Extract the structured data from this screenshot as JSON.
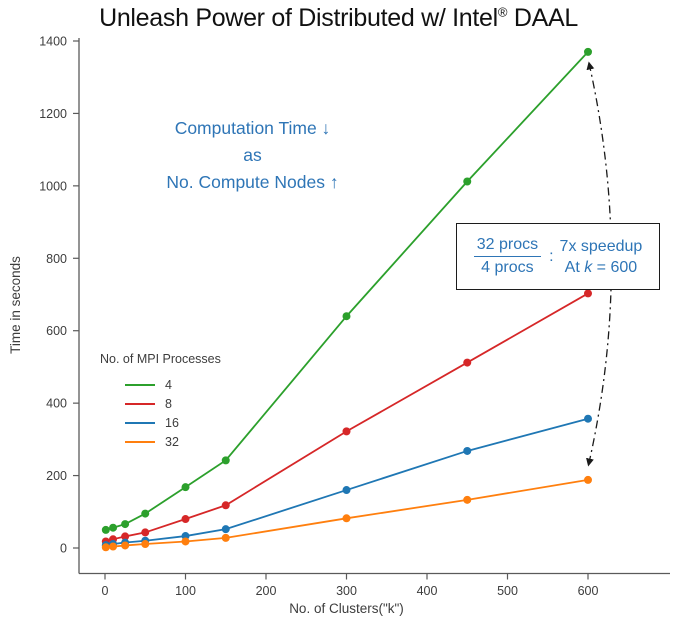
{
  "title": {
    "part1": "Unleash Power of Distributed w/ Intel",
    "reg": "®",
    "part2": " DAAL"
  },
  "note": {
    "line1": "Computation Time ↓",
    "line2": "as",
    "line3": "No. Compute Nodes ↑",
    "color": "#2e75b6"
  },
  "speedup_box": {
    "numerator": "32 procs",
    "denominator": "4 procs",
    "colon": ":",
    "line1": "7x speedup",
    "line2_pre": "At ",
    "line2_k": "k",
    "line2_post": " = 600",
    "text_color": "#2e75b6",
    "border_color": "#1c1c1c"
  },
  "chart_data": {
    "type": "line",
    "title": "Unleash Power of Distributed w/ Intel® DAAL",
    "xlabel": "No. of Clusters(\"k\")",
    "ylabel": "Time in seconds",
    "xlim": [
      0,
      600
    ],
    "ylim": [
      0,
      1400
    ],
    "xticks": [
      0,
      100,
      200,
      300,
      400,
      500,
      600
    ],
    "yticks": [
      0,
      200,
      400,
      600,
      800,
      1000,
      1200,
      1400
    ],
    "grid": false,
    "legend_title": "No. of MPI Processes",
    "legend_position": "center-left",
    "x": [
      1,
      10,
      25,
      50,
      100,
      150,
      300,
      450,
      600
    ],
    "series": [
      {
        "name": "4",
        "color": "#2ca02c",
        "values": [
          50,
          56,
          66,
          95,
          168,
          242,
          640,
          1012,
          1370
        ]
      },
      {
        "name": "8",
        "color": "#d62728",
        "values": [
          18,
          24,
          32,
          43,
          80,
          118,
          322,
          512,
          703
        ]
      },
      {
        "name": "16",
        "color": "#1f77b4",
        "values": [
          8,
          11,
          15,
          20,
          33,
          52,
          160,
          268,
          357
        ]
      },
      {
        "name": "32",
        "color": "#ff7f0e",
        "values": [
          2,
          4,
          7,
          11,
          18,
          28,
          82,
          133,
          188
        ]
      }
    ],
    "annotation_arrow": "double-headed dash-dot arrow between 4-proc and 32-proc points at k=600"
  }
}
